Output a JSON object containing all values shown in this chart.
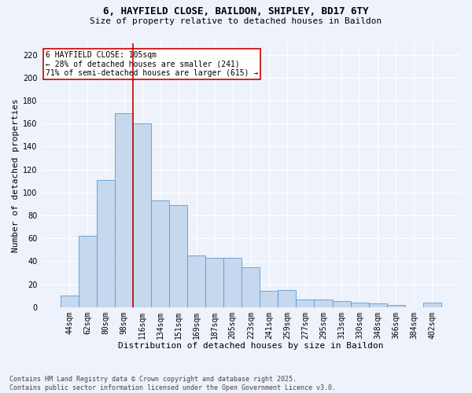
{
  "title_line1": "6, HAYFIELD CLOSE, BAILDON, SHIPLEY, BD17 6TY",
  "title_line2": "Size of property relative to detached houses in Baildon",
  "xlabel": "Distribution of detached houses by size in Baildon",
  "ylabel": "Number of detached properties",
  "categories": [
    "44sqm",
    "62sqm",
    "80sqm",
    "98sqm",
    "116sqm",
    "134sqm",
    "151sqm",
    "169sqm",
    "187sqm",
    "205sqm",
    "223sqm",
    "241sqm",
    "259sqm",
    "277sqm",
    "295sqm",
    "313sqm",
    "330sqm",
    "348sqm",
    "366sqm",
    "384sqm",
    "402sqm"
  ],
  "values": [
    10,
    62,
    111,
    169,
    160,
    93,
    89,
    45,
    43,
    43,
    35,
    14,
    15,
    7,
    7,
    5,
    4,
    3,
    2,
    0,
    4
  ],
  "bar_color": "#c5d8ed",
  "bar_edgecolor": "#5b9bd5",
  "vline_x_index": 4,
  "ylim": [
    0,
    230
  ],
  "yticks": [
    0,
    20,
    40,
    60,
    80,
    100,
    120,
    140,
    160,
    180,
    200,
    220
  ],
  "annotation_text": "6 HAYFIELD CLOSE: 105sqm\n← 28% of detached houses are smaller (241)\n71% of semi-detached houses are larger (615) →",
  "annotation_box_color": "#ffffff",
  "annotation_box_edgecolor": "#cc0000",
  "footnote": "Contains HM Land Registry data © Crown copyright and database right 2025.\nContains public sector information licensed under the Open Government Licence v3.0.",
  "background_color": "#eef2fb",
  "grid_color": "#ffffff",
  "vline_color": "#cc0000",
  "title_fontsize": 9,
  "subtitle_fontsize": 8,
  "xlabel_fontsize": 8,
  "ylabel_fontsize": 8,
  "tick_fontsize": 7,
  "annot_fontsize": 7,
  "footnote_fontsize": 6
}
